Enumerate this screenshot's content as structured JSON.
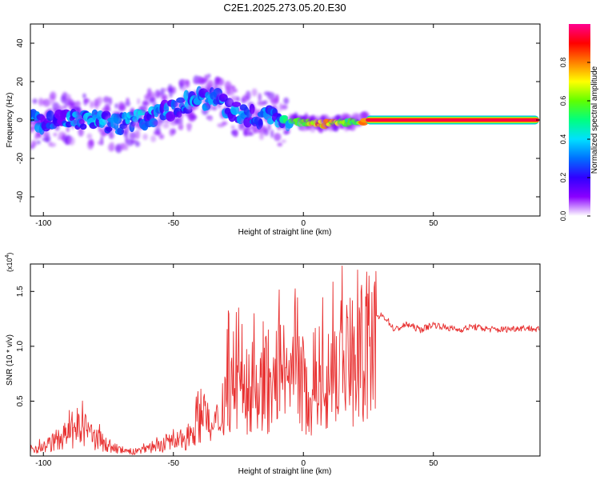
{
  "title": "C2E1.2025.273.05.20.E30",
  "chart_data": [
    {
      "type": "heatmap",
      "xlabel": "Height of straight line (km)",
      "ylabel": "Frequency (Hz)",
      "xlim": [
        -105,
        91
      ],
      "ylim": [
        -50,
        50
      ],
      "xticks": [
        -100,
        -50,
        0,
        50
      ],
      "yticks": [
        -40,
        -20,
        0,
        20,
        40
      ],
      "colorbar": {
        "label": "Normalized spectral amplitude",
        "range": [
          0,
          1
        ],
        "ticks": [
          "0.0",
          "0.2",
          "0.4",
          "0.6",
          "0.8"
        ],
        "colors": [
          "#ffffff",
          "#8a00ff",
          "#3000ff",
          "#0070ff",
          "#00e0ff",
          "#00ff80",
          "#60ff00",
          "#ffff00",
          "#ff8000",
          "#ff0000",
          "#ff0090"
        ]
      },
      "trend": {
        "height_km": [
          -105,
          -95,
          -90,
          -80,
          -70,
          -62,
          -55,
          -48,
          -42,
          -38,
          -35,
          -32,
          -28,
          -22,
          -18,
          -12,
          -8,
          -3,
          0,
          5,
          10,
          15,
          20,
          25,
          30,
          40,
          60,
          80,
          91
        ],
        "frequency_hz": [
          -1,
          0,
          1,
          -1,
          -2,
          0,
          4,
          7,
          10,
          11,
          12,
          9,
          5,
          2,
          2,
          1,
          0,
          -1,
          -1,
          -2,
          -2,
          -1,
          -1,
          0,
          0,
          0,
          0,
          0,
          0
        ],
        "normalized_amplitude": [
          0.25,
          0.2,
          0.25,
          0.3,
          0.3,
          0.3,
          0.25,
          0.25,
          0.3,
          0.25,
          0.3,
          0.25,
          0.25,
          0.25,
          0.2,
          0.25,
          0.35,
          0.55,
          0.6,
          0.75,
          0.7,
          0.65,
          0.55,
          0.9,
          0.95,
          0.95,
          0.95,
          0.95,
          0.95
        ]
      }
    },
    {
      "type": "line",
      "xlabel": "Height of straight line (km)",
      "ylabel": "SNR (10 * v/v)",
      "y_scale_label": "(x10",
      "y_scale_exponent": "4",
      "xlim": [
        -105,
        91
      ],
      "ylim": [
        0,
        1.75
      ],
      "xticks": [
        -100,
        -50,
        0,
        50
      ],
      "yticks": [
        "0.5",
        "1.0",
        "1.5"
      ],
      "color": "#e83030",
      "series": [
        {
          "x": [
            -105,
            -100,
            -95,
            -90,
            -85,
            -80,
            -75,
            -70,
            -65,
            -60,
            -55,
            -50,
            -45,
            -42,
            -40,
            -35,
            -32,
            -30,
            -27,
            -25,
            -22,
            -20,
            -17,
            -15,
            -12,
            -10,
            -8,
            -5,
            -3,
            0,
            3,
            5,
            8,
            10,
            12,
            15,
            18,
            20,
            22,
            25,
            28,
            30,
            32,
            35,
            40,
            45,
            50,
            55,
            60,
            65,
            70,
            75,
            80,
            85,
            91
          ],
          "y": [
            0.08,
            0.1,
            0.18,
            0.25,
            0.3,
            0.2,
            0.12,
            0.06,
            0.04,
            0.1,
            0.12,
            0.15,
            0.2,
            0.35,
            0.5,
            0.28,
            0.45,
            0.75,
            0.9,
            0.8,
            0.6,
            0.85,
            0.7,
            0.9,
            0.6,
            1.1,
            0.8,
            0.7,
            0.95,
            0.8,
            0.6,
            0.95,
            0.9,
            0.85,
            1.05,
            1.05,
            1.1,
            1.02,
            1.15,
            1.22,
            1.25,
            1.28,
            1.25,
            1.15,
            1.2,
            1.15,
            1.2,
            1.17,
            1.15,
            1.18,
            1.16,
            1.15,
            1.16,
            1.17,
            1.15
          ]
        }
      ]
    }
  ]
}
